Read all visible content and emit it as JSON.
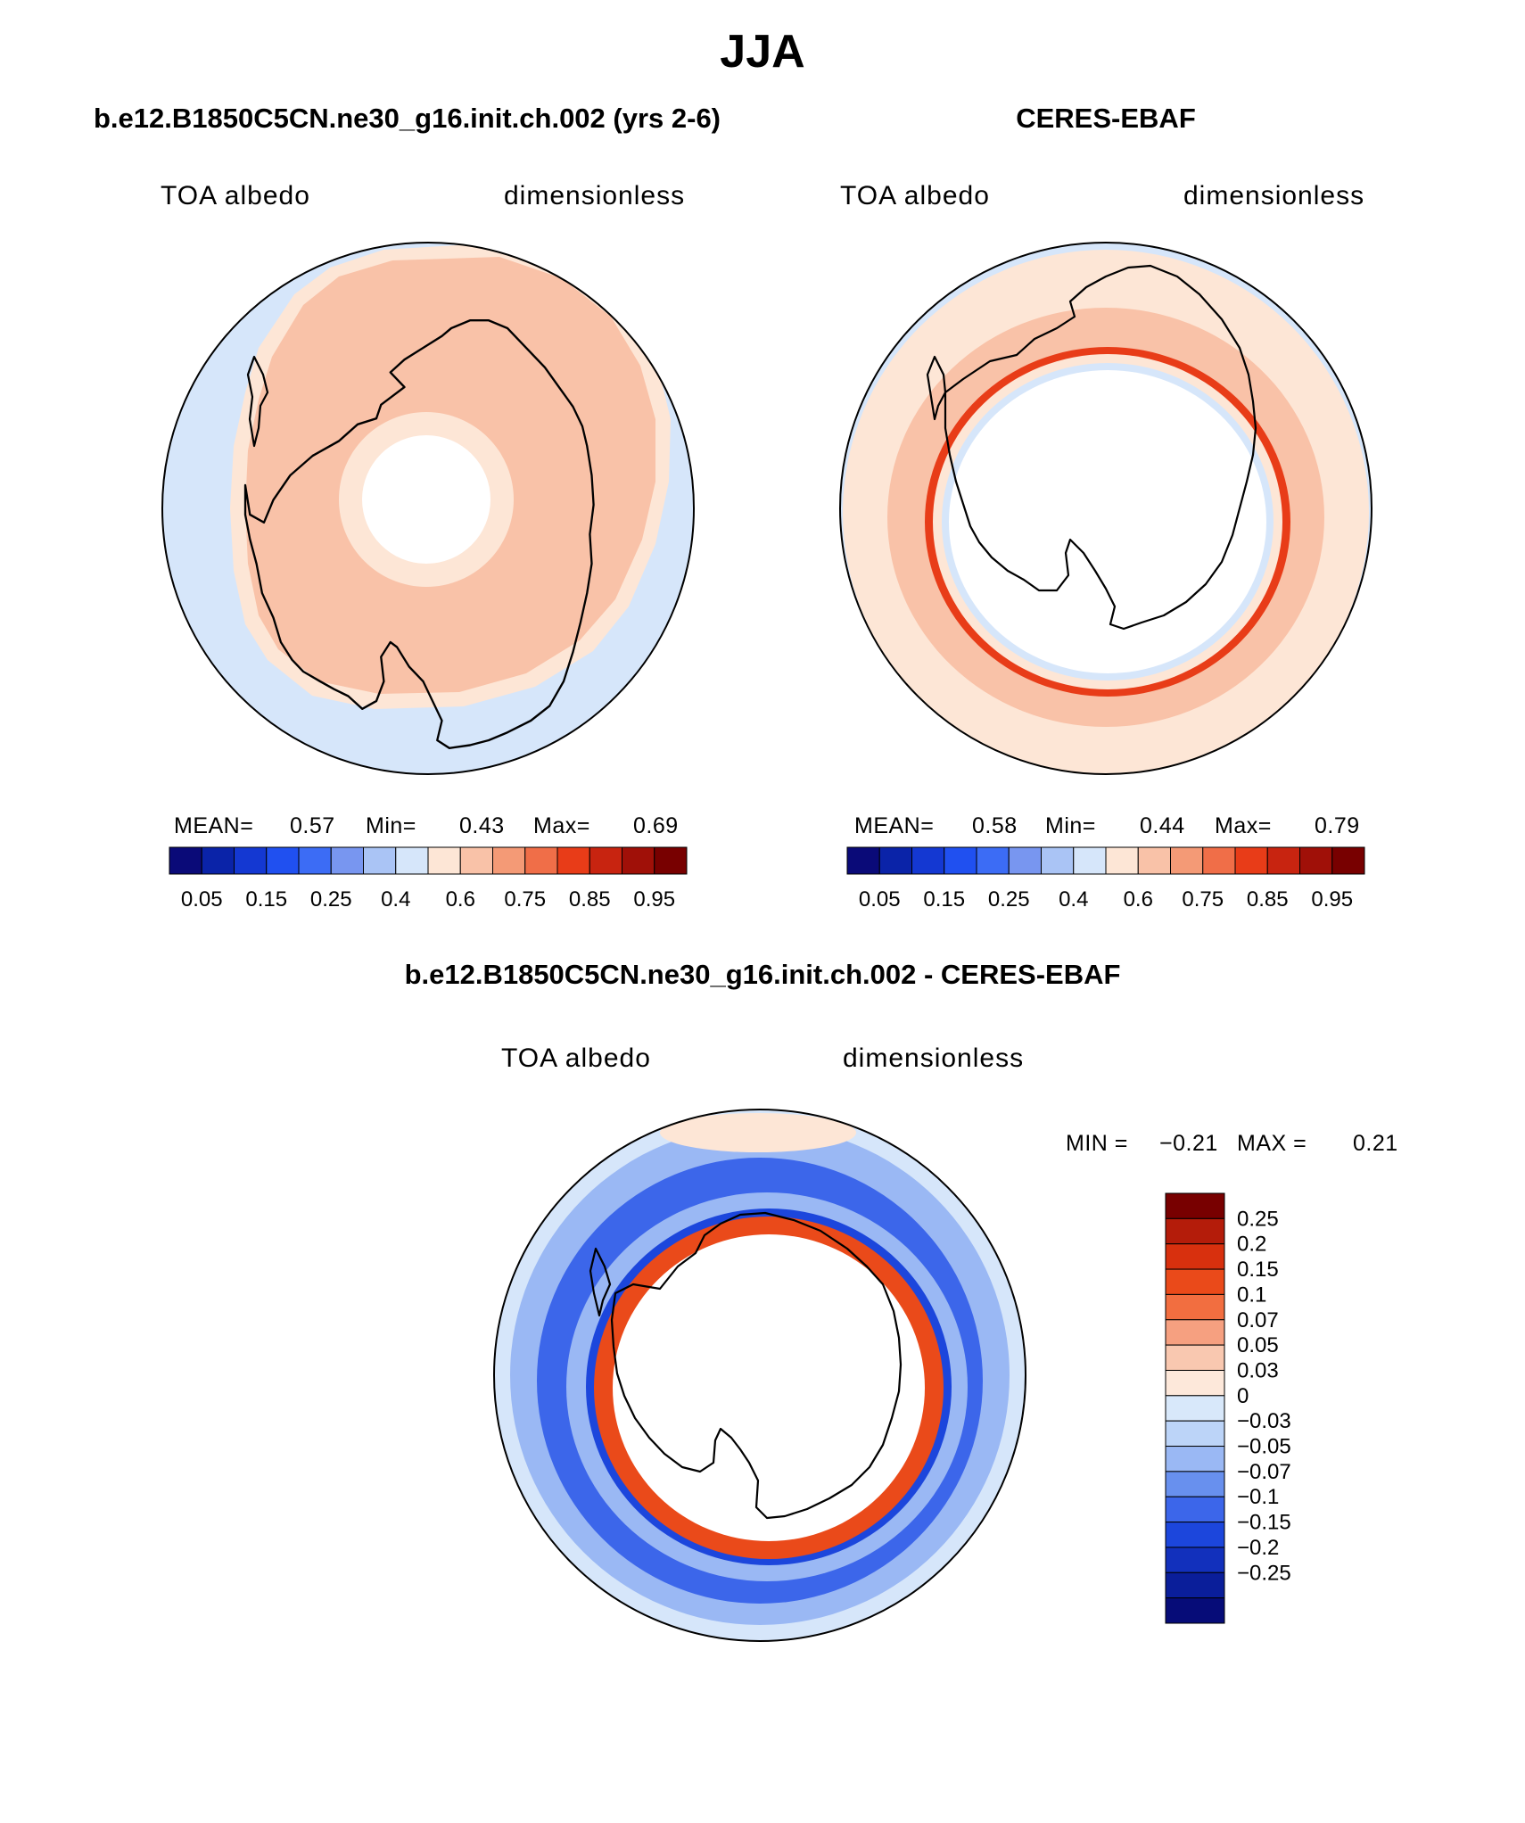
{
  "title": "JJA",
  "model_title": "b.e12.B1850C5CN.ne30_g16.init.ch.002 (yrs 2-6)",
  "obs_title": "CERES-EBAF",
  "diff_title": "b.e12.B1850C5CN.ne30_g16.init.ch.002 - CERES-EBAF",
  "panels": {
    "model": {
      "variable": "TOA albedo",
      "units": "dimensionless",
      "stats": {
        "mean_label": "MEAN=",
        "mean": "0.57",
        "min_label": "Min=",
        "min": "0.43",
        "max_label": "Max=",
        "max": "0.69"
      }
    },
    "obs": {
      "variable": "TOA albedo",
      "units": "dimensionless",
      "stats": {
        "mean_label": "MEAN=",
        "mean": "0.58",
        "min_label": "Min=",
        "min": "0.44",
        "max_label": "Max=",
        "max": "0.79"
      }
    },
    "diff": {
      "variable": "TOA albedo",
      "units": "dimensionless",
      "stats": {
        "min_label": "MIN =",
        "min": "−0.21",
        "max_label": "MAX =",
        "max": "0.21"
      }
    }
  },
  "colorbar_abs": {
    "colors": [
      "#0a0a78",
      "#0a23a8",
      "#1438d2",
      "#2050f0",
      "#3c6cf5",
      "#7896f0",
      "#aac4f5",
      "#d6e6fa",
      "#fde6d6",
      "#f9c2a8",
      "#f49a76",
      "#f06e48",
      "#e83c18",
      "#c82410",
      "#a01008",
      "#780000"
    ],
    "labels": [
      "0.05",
      "0.15",
      "0.25",
      "0.4",
      "0.6",
      "0.75",
      "0.85",
      "0.95"
    ]
  },
  "colorbar_diff": {
    "colors": [
      "#780000",
      "#b41c0a",
      "#d8300e",
      "#ea4a1a",
      "#f26e40",
      "#f6a080",
      "#f9c8b0",
      "#fde8da",
      "#d8e8fa",
      "#bcd4f8",
      "#9ab8f4",
      "#6890ee",
      "#3c66ea",
      "#1c46dc",
      "#1230bc",
      "#0a1e9a",
      "#060c78"
    ],
    "labels": [
      "0.25",
      "0.2",
      "0.15",
      "0.1",
      "0.07",
      "0.05",
      "0.03",
      "0",
      "−0.03",
      "−0.05",
      "−0.07",
      "−0.1",
      "−0.15",
      "−0.2",
      "−0.25"
    ]
  },
  "map_colors": {
    "ocean_low": "#d6e6fa",
    "band_light": "#fde6d6",
    "band_mid": "#f9c2a8",
    "band_strong": "#f49a76",
    "band_red": "#e83c18",
    "diff_blue_light": "#9ab8f4",
    "diff_blue_mid": "#3c66ea",
    "diff_blue_dark": "#1c46dc",
    "diff_red": "#ea4a1a",
    "coast": "#000000",
    "missing": "#ffffff"
  }
}
